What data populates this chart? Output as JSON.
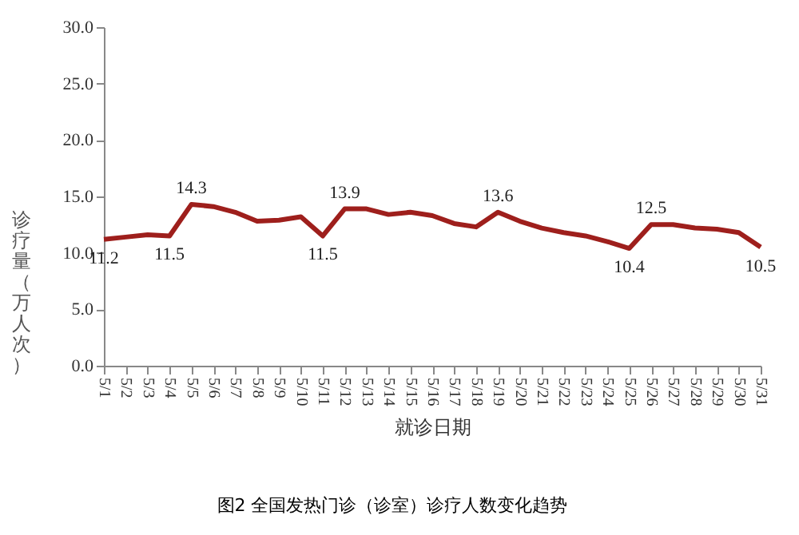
{
  "chart_data": {
    "type": "line",
    "title": "图2 全国发热门诊（诊室）诊疗人数变化趋势",
    "xlabel": "就诊日期",
    "ylabel": "诊疗量（万人次）",
    "categories": [
      "5/1",
      "5/2",
      "5/3",
      "5/4",
      "5/5",
      "5/6",
      "5/7",
      "5/8",
      "5/9",
      "5/10",
      "5/11",
      "5/12",
      "5/13",
      "5/14",
      "5/15",
      "5/16",
      "5/17",
      "5/18",
      "5/19",
      "5/20",
      "5/21",
      "5/22",
      "5/23",
      "5/24",
      "5/25",
      "5/26",
      "5/27",
      "5/28",
      "5/29",
      "5/30",
      "5/31"
    ],
    "series": [
      {
        "color": "#9e1f1c",
        "values": [
          11.2,
          11.4,
          11.6,
          11.5,
          14.3,
          14.1,
          13.6,
          12.8,
          12.9,
          13.2,
          11.5,
          13.9,
          13.9,
          13.4,
          13.6,
          13.3,
          12.6,
          12.3,
          13.6,
          12.8,
          12.2,
          11.8,
          11.5,
          11.0,
          10.4,
          12.5,
          12.5,
          12.2,
          12.1,
          11.8,
          10.5
        ],
        "value_labels": [
          "11.2",
          null,
          null,
          "11.5",
          "14.3",
          null,
          null,
          null,
          null,
          null,
          "11.5",
          "13.9",
          null,
          null,
          null,
          null,
          null,
          null,
          "13.6",
          null,
          null,
          null,
          null,
          null,
          "10.4",
          "12.5",
          null,
          null,
          null,
          null,
          "10.5"
        ]
      }
    ],
    "ylim": [
      0,
      30
    ],
    "yticks": [
      {
        "value": 0,
        "label": "0.0"
      },
      {
        "value": 5,
        "label": "5.0"
      },
      {
        "value": 10,
        "label": "10.0"
      },
      {
        "value": 15,
        "label": "15.0"
      },
      {
        "value": 20,
        "label": "20.0"
      },
      {
        "value": 25,
        "label": "25.0"
      },
      {
        "value": 30,
        "label": "30.0"
      }
    ],
    "grid": false,
    "marker": "none",
    "line_style": "solid"
  }
}
